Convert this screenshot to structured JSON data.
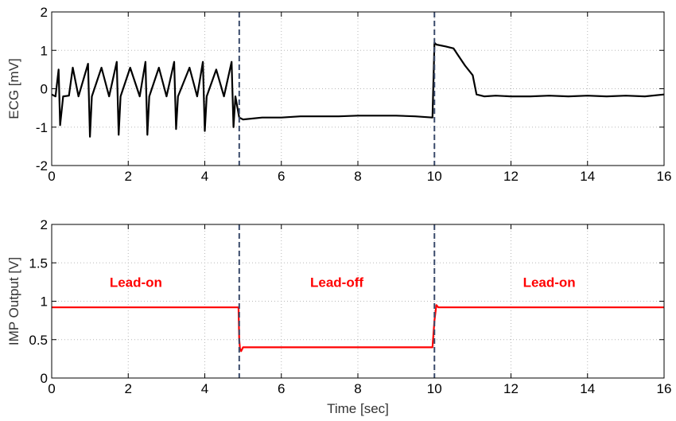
{
  "chart_data": [
    {
      "type": "line",
      "title": "",
      "xlabel": "",
      "ylabel": "ECG [mV]",
      "xlim": [
        0,
        16
      ],
      "ylim": [
        -2,
        2
      ],
      "xticks": [
        0,
        2,
        4,
        6,
        8,
        10,
        12,
        14,
        16
      ],
      "yticks": [
        -2,
        -1,
        0,
        1,
        2
      ],
      "grid": true,
      "line_color": "#000000",
      "markers": [
        4.9,
        10.0
      ],
      "marker_color": "#3a4a6b",
      "series": [
        {
          "name": "",
          "x": [
            0,
            0.1,
            0.18,
            0.22,
            0.3,
            0.45,
            0.55,
            0.7,
            0.95,
            1.0,
            1.05,
            1.3,
            1.5,
            1.7,
            1.75,
            1.8,
            2.05,
            2.3,
            2.45,
            2.5,
            2.55,
            2.8,
            3.0,
            3.2,
            3.25,
            3.3,
            3.6,
            3.8,
            3.95,
            4.0,
            4.05,
            4.3,
            4.5,
            4.7,
            4.75,
            4.8,
            4.9,
            5.0,
            5.5,
            6.0,
            6.5,
            7.0,
            7.5,
            8.0,
            8.5,
            9.0,
            9.5,
            9.95,
            10.0,
            10.05,
            10.3,
            10.5,
            10.6,
            10.8,
            11.0,
            11.1,
            11.3,
            11.6,
            12.0,
            12.5,
            13.0,
            13.5,
            14.0,
            14.5,
            15.0,
            15.5,
            16.0
          ],
          "y": [
            -0.15,
            -0.2,
            0.5,
            -0.95,
            -0.2,
            -0.18,
            0.55,
            -0.2,
            0.65,
            -1.25,
            -0.2,
            0.55,
            -0.2,
            0.7,
            -1.2,
            -0.2,
            0.55,
            -0.2,
            0.7,
            -1.2,
            -0.2,
            0.55,
            -0.2,
            0.7,
            -1.05,
            -0.2,
            0.55,
            -0.2,
            0.7,
            -1.1,
            -0.2,
            0.5,
            -0.2,
            0.7,
            -1.0,
            -0.2,
            -0.75,
            -0.8,
            -0.75,
            -0.75,
            -0.72,
            -0.72,
            -0.72,
            -0.7,
            -0.7,
            -0.7,
            -0.72,
            -0.75,
            1.2,
            1.15,
            1.1,
            1.05,
            0.9,
            0.6,
            0.35,
            -0.15,
            -0.2,
            -0.18,
            -0.2,
            -0.2,
            -0.18,
            -0.2,
            -0.18,
            -0.2,
            -0.18,
            -0.2,
            -0.15
          ]
        }
      ]
    },
    {
      "type": "line",
      "title": "",
      "xlabel": "Time [sec]",
      "ylabel": "IMP Output [V]",
      "xlim": [
        0,
        16
      ],
      "ylim": [
        0,
        2
      ],
      "xticks": [
        0,
        2,
        4,
        6,
        8,
        10,
        12,
        14,
        16
      ],
      "yticks": [
        0,
        0.5,
        1,
        1.5,
        2
      ],
      "grid": true,
      "line_color": "#ff0000",
      "markers": [
        4.9,
        10.0
      ],
      "marker_color": "#3a4a6b",
      "annotations": [
        {
          "text": "Lead-on",
          "x": 2.2,
          "y": 1.25
        },
        {
          "text": "Lead-off",
          "x": 7.45,
          "y": 1.25
        },
        {
          "text": "Lead-on",
          "x": 13.0,
          "y": 1.25
        }
      ],
      "series": [
        {
          "name": "",
          "x": [
            0,
            4.88,
            4.9,
            4.92,
            4.95,
            5.0,
            6.0,
            8.0,
            9.95,
            10.0,
            10.05,
            10.1,
            12.0,
            14.0,
            16.0
          ],
          "y": [
            0.92,
            0.92,
            0.5,
            0.38,
            0.35,
            0.4,
            0.4,
            0.4,
            0.4,
            0.75,
            0.95,
            0.92,
            0.92,
            0.92,
            0.92
          ]
        }
      ]
    }
  ]
}
